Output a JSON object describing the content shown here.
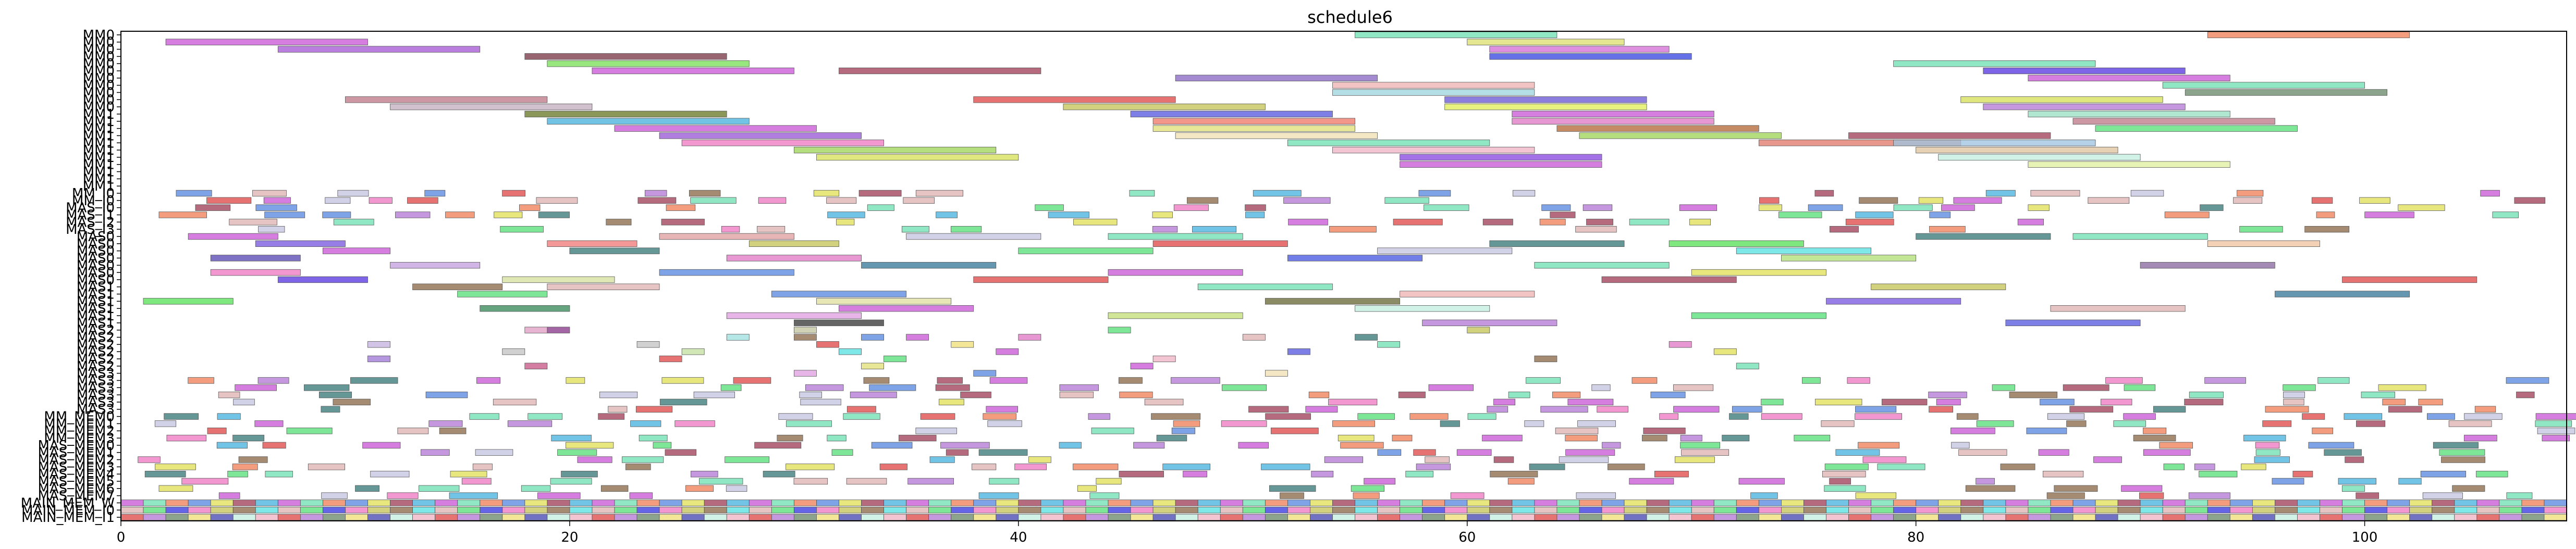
{
  "chart_data": {
    "type": "gantt",
    "title": "schedule6",
    "xlabel": "",
    "ylabel": "",
    "xlim": [
      0,
      109
    ],
    "grid": false,
    "x_ticks": [
      0,
      20,
      40,
      60,
      80,
      100
    ],
    "categories": [
      "MM0",
      "MM0",
      "MM0",
      "MM0",
      "MM0",
      "MM0",
      "MM0",
      "MM0",
      "MM0",
      "MM0",
      "MM0",
      "MM1",
      "MM1",
      "MM1",
      "MM1",
      "MM1",
      "MM1",
      "MM1",
      "MM1",
      "MM1",
      "MM1",
      "MM1",
      "MM_I0",
      "MM_I0",
      "MAS_I0",
      "MAS_I1",
      "MAS_I2",
      "MAS_I3",
      "MAS0",
      "MAS0",
      "MAS0",
      "MAS0",
      "MAS0",
      "MAS0",
      "MAS0",
      "MAS1",
      "MAS1",
      "MAS1",
      "MAS1",
      "MAS1",
      "MAS1",
      "MAS2",
      "MAS2",
      "MAS2",
      "MAS2",
      "MAS2",
      "MAS2",
      "MAS3",
      "MAS3",
      "MAS3",
      "MAS3",
      "MAS3",
      "MAS3",
      "MM_MEM0",
      "MM_MEM1",
      "MM_MEM2",
      "MM_MEM3",
      "MAS_MEM0",
      "MAS_MEM1",
      "MAS_MEM2",
      "MAS_MEM3",
      "MAS_MEM4",
      "MAS_MEM5",
      "MAS_MEM6",
      "MAS_MEM7",
      "MAIN_MEM_W",
      "MAIN_MEM_I0",
      "MAIN_MEM_I1"
    ],
    "tasks": [
      {
        "row": 0,
        "start": 55,
        "end": 64,
        "color": "#6fe0b4"
      },
      {
        "row": 0,
        "start": 93,
        "end": 102,
        "color": "#f0825a"
      },
      {
        "row": 1,
        "start": 2,
        "end": 11,
        "color": "#c95ad6"
      },
      {
        "row": 1,
        "start": 60,
        "end": 67,
        "color": "#dce070"
      },
      {
        "row": 2,
        "start": 7,
        "end": 16,
        "color": "#a65ad6"
      },
      {
        "row": 2,
        "start": 61,
        "end": 69,
        "color": "#d670d6"
      },
      {
        "row": 3,
        "start": 18,
        "end": 27,
        "color": "#7a3a4a"
      },
      {
        "row": 3,
        "start": 61,
        "end": 70,
        "color": "#3a4ae0"
      },
      {
        "row": 4,
        "start": 19,
        "end": 28,
        "color": "#7ae05a"
      },
      {
        "row": 4,
        "start": 79,
        "end": 88,
        "color": "#6fe0b4"
      },
      {
        "row": 5,
        "start": 21,
        "end": 30,
        "color": "#c95ad6"
      },
      {
        "row": 5,
        "start": 32,
        "end": 41,
        "color": "#a0405a"
      },
      {
        "row": 5,
        "start": 83,
        "end": 92,
        "color": "#5a3ae0"
      },
      {
        "row": 6,
        "start": 47,
        "end": 56,
        "color": "#8a6ac4"
      },
      {
        "row": 6,
        "start": 85,
        "end": 94,
        "color": "#c95ad6"
      },
      {
        "row": 7,
        "start": 54,
        "end": 63,
        "color": "#f0b4b4"
      },
      {
        "row": 7,
        "start": 91,
        "end": 100,
        "color": "#6fe0b4"
      },
      {
        "row": 8,
        "start": 54,
        "end": 63,
        "color": "#a0d6e0"
      },
      {
        "row": 8,
        "start": 92,
        "end": 101,
        "color": "#6a8a6a"
      },
      {
        "row": 9,
        "start": 10,
        "end": 19,
        "color": "#c07a8a"
      },
      {
        "row": 9,
        "start": 38,
        "end": 47,
        "color": "#e04a4a"
      },
      {
        "row": 9,
        "start": 59,
        "end": 68,
        "color": "#6a5ad6"
      },
      {
        "row": 9,
        "start": 82,
        "end": 91,
        "color": "#d6e05a"
      },
      {
        "row": 10,
        "start": 12,
        "end": 21,
        "color": "#c4b0c0"
      },
      {
        "row": 10,
        "start": 42,
        "end": 51,
        "color": "#c4c45a"
      },
      {
        "row": 10,
        "start": 59,
        "end": 68,
        "color": "#e0f05a"
      },
      {
        "row": 10,
        "start": 83,
        "end": 92,
        "color": "#b47ad6"
      },
      {
        "row": 11,
        "start": 18,
        "end": 27,
        "color": "#6a7a2a"
      },
      {
        "row": 11,
        "start": 45,
        "end": 54,
        "color": "#5a5ae0"
      },
      {
        "row": 11,
        "start": 62,
        "end": 71,
        "color": "#c95ad6"
      },
      {
        "row": 11,
        "start": 85,
        "end": 94,
        "color": "#9ae0c4"
      },
      {
        "row": 12,
        "start": 19,
        "end": 28,
        "color": "#4ab4e0"
      },
      {
        "row": 12,
        "start": 46,
        "end": 55,
        "color": "#f07a6a"
      },
      {
        "row": 12,
        "start": 62,
        "end": 71,
        "color": "#e07ac4"
      },
      {
        "row": 12,
        "start": 87,
        "end": 96,
        "color": "#c07a8a"
      },
      {
        "row": 13,
        "start": 22,
        "end": 31,
        "color": "#c95ad6"
      },
      {
        "row": 13,
        "start": 46,
        "end": 55,
        "color": "#e0e07a"
      },
      {
        "row": 13,
        "start": 64,
        "end": 73,
        "color": "#b46a3a"
      },
      {
        "row": 13,
        "start": 88,
        "end": 97,
        "color": "#5ae07a"
      },
      {
        "row": 14,
        "start": 24,
        "end": 33,
        "color": "#9a5ad6"
      },
      {
        "row": 14,
        "start": 47,
        "end": 56,
        "color": "#f0e0b4"
      },
      {
        "row": 14,
        "start": 65,
        "end": 74,
        "color": "#a0d65a"
      },
      {
        "row": 14,
        "start": 77,
        "end": 86,
        "color": "#a0405a"
      },
      {
        "row": 15,
        "start": 25,
        "end": 34,
        "color": "#f07ac4"
      },
      {
        "row": 15,
        "start": 52,
        "end": 61,
        "color": "#6fe0b4"
      },
      {
        "row": 15,
        "start": 73,
        "end": 82,
        "color": "#e07a6a"
      },
      {
        "row": 15,
        "start": 79,
        "end": 88,
        "color": "#a0c4e0"
      },
      {
        "row": 16,
        "start": 30,
        "end": 39,
        "color": "#a0d65a"
      },
      {
        "row": 16,
        "start": 54,
        "end": 63,
        "color": "#f0b4c4"
      },
      {
        "row": 16,
        "start": 80,
        "end": 89,
        "color": "#e0c4a0"
      },
      {
        "row": 17,
        "start": 31,
        "end": 40,
        "color": "#d6e05a"
      },
      {
        "row": 17,
        "start": 57,
        "end": 66,
        "color": "#8a4ae0"
      },
      {
        "row": 17,
        "start": 81,
        "end": 90,
        "color": "#c4f0e0"
      },
      {
        "row": 18,
        "start": 57,
        "end": 66,
        "color": "#c95ad6"
      },
      {
        "row": 18,
        "start": 85,
        "end": 94,
        "color": "#e0f0a0"
      },
      {
        "row": 28,
        "start": 3,
        "end": 7,
        "color": "#c95ad6"
      },
      {
        "row": 28,
        "start": 24,
        "end": 30,
        "color": "#e0a0a0"
      },
      {
        "row": 28,
        "start": 35,
        "end": 41,
        "color": "#c4c4e0"
      },
      {
        "row": 28,
        "start": 44,
        "end": 50,
        "color": "#6fe0b4"
      },
      {
        "row": 28,
        "start": 80,
        "end": 86,
        "color": "#3a7a7a"
      },
      {
        "row": 28,
        "start": 87,
        "end": 93,
        "color": "#6fe0b4"
      },
      {
        "row": 29,
        "start": 6,
        "end": 10,
        "color": "#7a5ae0"
      },
      {
        "row": 29,
        "start": 19,
        "end": 23,
        "color": "#f07a7a"
      },
      {
        "row": 29,
        "start": 28,
        "end": 32,
        "color": "#c4c45a"
      },
      {
        "row": 29,
        "start": 46,
        "end": 52,
        "color": "#e04a4a"
      },
      {
        "row": 29,
        "start": 61,
        "end": 67,
        "color": "#3a7a7a"
      },
      {
        "row": 29,
        "start": 69,
        "end": 75,
        "color": "#5ae05a"
      },
      {
        "row": 29,
        "start": 93,
        "end": 98,
        "color": "#f0c4a0"
      },
      {
        "row": 30,
        "start": 9,
        "end": 12,
        "color": "#c95ad6"
      },
      {
        "row": 30,
        "start": 20,
        "end": 24,
        "color": "#3a7a7a"
      },
      {
        "row": 30,
        "start": 40,
        "end": 46,
        "color": "#5ae07a"
      },
      {
        "row": 30,
        "start": 56,
        "end": 62,
        "color": "#c4c4e0"
      },
      {
        "row": 30,
        "start": 72,
        "end": 78,
        "color": "#5ae0e0"
      },
      {
        "row": 31,
        "start": 4,
        "end": 8,
        "color": "#5a4ab4"
      },
      {
        "row": 31,
        "start": 27,
        "end": 33,
        "color": "#e07ac4"
      },
      {
        "row": 31,
        "start": 52,
        "end": 58,
        "color": "#4a5ae0"
      },
      {
        "row": 31,
        "start": 74,
        "end": 80,
        "color": "#b4e07a"
      },
      {
        "row": 32,
        "start": 12,
        "end": 16,
        "color": "#c4a0e0"
      },
      {
        "row": 32,
        "start": 33,
        "end": 39,
        "color": "#3a7a9a"
      },
      {
        "row": 32,
        "start": 63,
        "end": 69,
        "color": "#6fe0b4"
      },
      {
        "row": 32,
        "start": 90,
        "end": 96,
        "color": "#8a6aa0"
      },
      {
        "row": 33,
        "start": 4,
        "end": 8,
        "color": "#f07ac4"
      },
      {
        "row": 33,
        "start": 24,
        "end": 30,
        "color": "#5a8ae0"
      },
      {
        "row": 33,
        "start": 44,
        "end": 50,
        "color": "#c95ad6"
      },
      {
        "row": 33,
        "start": 70,
        "end": 76,
        "color": "#e0e05a"
      },
      {
        "row": 34,
        "start": 7,
        "end": 11,
        "color": "#5a3ae0"
      },
      {
        "row": 34,
        "start": 17,
        "end": 22,
        "color": "#d6e0a0"
      },
      {
        "row": 34,
        "start": 38,
        "end": 44,
        "color": "#e04a4a"
      },
      {
        "row": 34,
        "start": 66,
        "end": 72,
        "color": "#a0405a"
      },
      {
        "row": 34,
        "start": 99,
        "end": 105,
        "color": "#e04a4a"
      },
      {
        "row": 35,
        "start": 13,
        "end": 17,
        "color": "#8a6a4a"
      },
      {
        "row": 35,
        "start": 19,
        "end": 24,
        "color": "#e0b4b4"
      },
      {
        "row": 35,
        "start": 48,
        "end": 54,
        "color": "#6fe0b4"
      },
      {
        "row": 35,
        "start": 78,
        "end": 84,
        "color": "#c4c45a"
      },
      {
        "row": 36,
        "start": 15,
        "end": 19,
        "color": "#5ae07a"
      },
      {
        "row": 36,
        "start": 29,
        "end": 35,
        "color": "#5a8ae0"
      },
      {
        "row": 36,
        "start": 57,
        "end": 63,
        "color": "#f0b4b4"
      },
      {
        "row": 36,
        "start": 96,
        "end": 102,
        "color": "#3a7a9a"
      },
      {
        "row": 37,
        "start": 1,
        "end": 5,
        "color": "#5ae05a"
      },
      {
        "row": 37,
        "start": 31,
        "end": 37,
        "color": "#e0e0a0"
      },
      {
        "row": 37,
        "start": 51,
        "end": 57,
        "color": "#6a6a3a"
      },
      {
        "row": 37,
        "start": 76,
        "end": 82,
        "color": "#7a5ae0"
      },
      {
        "row": 38,
        "start": 16,
        "end": 20,
        "color": "#3a8a5a"
      },
      {
        "row": 38,
        "start": 32,
        "end": 38,
        "color": "#c95ad6"
      },
      {
        "row": 38,
        "start": 55,
        "end": 61,
        "color": "#c4f0e0"
      },
      {
        "row": 38,
        "start": 86,
        "end": 92,
        "color": "#e0b4b4"
      },
      {
        "row": 39,
        "start": 27,
        "end": 33,
        "color": "#e0a0e0"
      },
      {
        "row": 39,
        "start": 44,
        "end": 50,
        "color": "#c4e07a"
      },
      {
        "row": 39,
        "start": 70,
        "end": 76,
        "color": "#5ae07a"
      },
      {
        "row": 40,
        "start": 30,
        "end": 34,
        "color": "#3a3a3a"
      },
      {
        "row": 40,
        "start": 58,
        "end": 64,
        "color": "#b47ad6"
      },
      {
        "row": 40,
        "start": 84,
        "end": 90,
        "color": "#5a5ae0"
      },
      {
        "row": 41,
        "start": 18,
        "end": 19,
        "color": "#e0a0c4"
      },
      {
        "row": 41,
        "start": 19,
        "end": 20,
        "color": "#8a3a8a"
      },
      {
        "row": 41,
        "start": 30,
        "end": 31,
        "color": "#c4c4a0"
      },
      {
        "row": 41,
        "start": 44,
        "end": 45,
        "color": "#5ae07a"
      },
      {
        "row": 41,
        "start": 60,
        "end": 61,
        "color": "#c4c45a"
      },
      {
        "row": 42,
        "start": 27,
        "end": 28,
        "color": "#a0e0e0"
      },
      {
        "row": 42,
        "start": 30,
        "end": 31,
        "color": "#8a6a4a"
      },
      {
        "row": 42,
        "start": 33,
        "end": 34,
        "color": "#5a8ae0"
      },
      {
        "row": 42,
        "start": 35,
        "end": 36,
        "color": "#c95ad6"
      },
      {
        "row": 42,
        "start": 40,
        "end": 41,
        "color": "#e07ac4"
      },
      {
        "row": 42,
        "start": 50,
        "end": 51,
        "color": "#e0b4b4"
      },
      {
        "row": 42,
        "start": 55,
        "end": 56,
        "color": "#3a7a7a"
      },
      {
        "row": 43,
        "start": 11,
        "end": 12,
        "color": "#c4b4e0"
      },
      {
        "row": 43,
        "start": 23,
        "end": 24,
        "color": "#c4c4c4"
      },
      {
        "row": 43,
        "start": 31,
        "end": 32,
        "color": "#e04a4a"
      },
      {
        "row": 43,
        "start": 37,
        "end": 38,
        "color": "#f0e07a"
      },
      {
        "row": 43,
        "start": 56,
        "end": 57,
        "color": "#6fe0b4"
      },
      {
        "row": 43,
        "start": 69,
        "end": 70,
        "color": "#e07ac4"
      },
      {
        "row": 44,
        "start": 17,
        "end": 18,
        "color": "#c4c4c4"
      },
      {
        "row": 44,
        "start": 25,
        "end": 26,
        "color": "#c4e0a0"
      },
      {
        "row": 44,
        "start": 32,
        "end": 33,
        "color": "#5ae0e0"
      },
      {
        "row": 44,
        "start": 39,
        "end": 40,
        "color": "#c95ad6"
      },
      {
        "row": 44,
        "start": 52,
        "end": 53,
        "color": "#5a5ae0"
      },
      {
        "row": 44,
        "start": 71,
        "end": 72,
        "color": "#e0e05a"
      },
      {
        "row": 45,
        "start": 11,
        "end": 12,
        "color": "#a07ad6"
      },
      {
        "row": 45,
        "start": 24,
        "end": 25,
        "color": "#e04a4a"
      },
      {
        "row": 45,
        "start": 34,
        "end": 35,
        "color": "#5ae07a"
      },
      {
        "row": 45,
        "start": 46,
        "end": 47,
        "color": "#f0b4c4"
      },
      {
        "row": 45,
        "start": 63,
        "end": 64,
        "color": "#8a6a4a"
      },
      {
        "row": 46,
        "start": 18,
        "end": 19,
        "color": "#c95a8a"
      },
      {
        "row": 46,
        "start": 33,
        "end": 34,
        "color": "#e0e07a"
      },
      {
        "row": 46,
        "start": 45,
        "end": 46,
        "color": "#c95ad6"
      },
      {
        "row": 46,
        "start": 72,
        "end": 73,
        "color": "#6fe0b4"
      },
      {
        "row": 47,
        "start": 30,
        "end": 31,
        "color": "#e0a0e0"
      },
      {
        "row": 47,
        "start": 38,
        "end": 39,
        "color": "#5a8ae0"
      },
      {
        "row": 47,
        "start": 51,
        "end": 52,
        "color": "#f0e0b4"
      }
    ],
    "bottom_rows": [
      {
        "row": 65,
        "start": 0,
        "end": 109,
        "pattern": "dense",
        "colors": [
          "#c95ad6",
          "#6fe0b4",
          "#f0825a",
          "#5a8ae0",
          "#e0e05a",
          "#a0405a",
          "#4ab4e0"
        ]
      },
      {
        "row": 66,
        "start": 0,
        "end": 109,
        "pattern": "dense",
        "colors": [
          "#e0b4b4",
          "#5ae07a",
          "#3a3ae0",
          "#f07ac4",
          "#c4c45a",
          "#8a6a4a",
          "#5ae0e0"
        ]
      },
      {
        "row": 67,
        "start": 0,
        "end": 109,
        "pattern": "dense",
        "colors": [
          "#e04a4a",
          "#b47ad6",
          "#6a8a6a",
          "#f0e07a",
          "#4a4ab4",
          "#c4f0e0",
          "#f0b4c4"
        ]
      }
    ],
    "scatter_rows": [
      22,
      23,
      24,
      25,
      26,
      27,
      48,
      49,
      50,
      51,
      52,
      53,
      54,
      55,
      56,
      57,
      58,
      59,
      60,
      61,
      62,
      63,
      64
    ]
  }
}
